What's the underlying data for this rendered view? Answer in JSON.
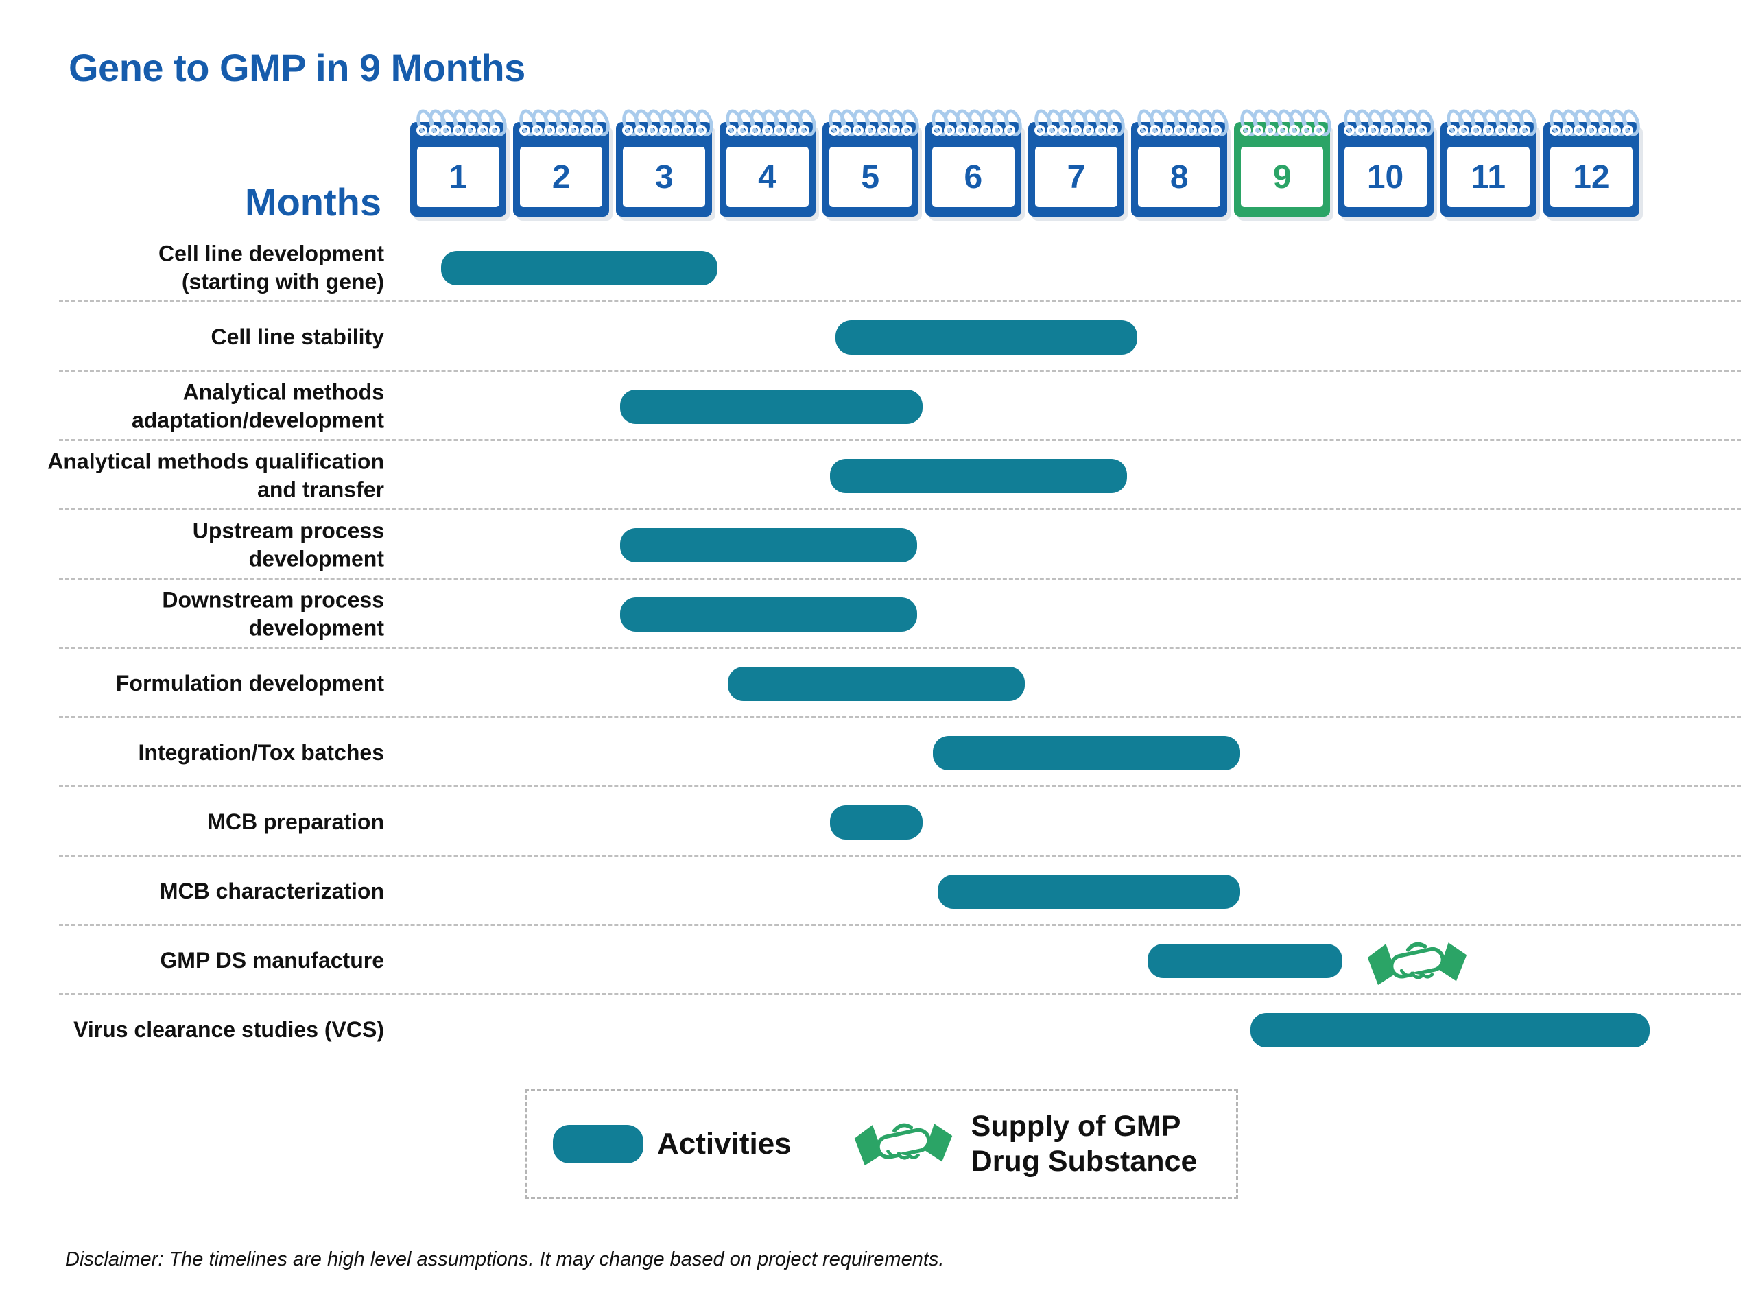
{
  "title": "Gene to GMP in 9 Months",
  "header": {
    "months_label": "Months"
  },
  "chart_data": {
    "type": "gantt",
    "title": "Gene to GMP in 9 Months",
    "x_axis": {
      "label": "Months",
      "min": 1,
      "max": 13
    },
    "months": [
      {
        "label": "1",
        "highlight": false
      },
      {
        "label": "2",
        "highlight": false
      },
      {
        "label": "3",
        "highlight": false
      },
      {
        "label": "4",
        "highlight": false
      },
      {
        "label": "5",
        "highlight": false
      },
      {
        "label": "6",
        "highlight": false
      },
      {
        "label": "7",
        "highlight": false
      },
      {
        "label": "8",
        "highlight": false
      },
      {
        "label": "9",
        "highlight": true
      },
      {
        "label": "10",
        "highlight": false
      },
      {
        "label": "11",
        "highlight": false
      },
      {
        "label": "12",
        "highlight": false
      }
    ],
    "rows": [
      {
        "label": "Cell line development\n(starting with gene)",
        "start": 1.3,
        "end": 4.0
      },
      {
        "label": "Cell line stability",
        "start": 5.15,
        "end": 8.1
      },
      {
        "label": "Analytical methods\nadaptation/development",
        "start": 3.05,
        "end": 6.0
      },
      {
        "label": "Analytical methods qualification\nand transfer",
        "start": 5.1,
        "end": 8.0
      },
      {
        "label": "Upstream process\ndevelopment",
        "start": 3.05,
        "end": 5.95
      },
      {
        "label": "Downstream process\ndevelopment",
        "start": 3.05,
        "end": 5.95
      },
      {
        "label": "Formulation development",
        "start": 4.1,
        "end": 7.0
      },
      {
        "label": "Integration/Tox batches",
        "start": 6.1,
        "end": 9.1
      },
      {
        "label": "MCB preparation",
        "start": 5.1,
        "end": 6.0
      },
      {
        "label": "MCB characterization",
        "start": 6.15,
        "end": 9.1
      },
      {
        "label": "GMP DS manufacture",
        "start": 8.2,
        "end": 10.1,
        "milestone": {
          "type": "handshake",
          "at": 10.32,
          "label": "Supply of GMP Drug Substance"
        }
      },
      {
        "label": "Virus clearance studies (VCS)",
        "start": 9.2,
        "end": 13.1
      }
    ],
    "legend": [
      {
        "swatch": "bar",
        "label": "Activities"
      },
      {
        "swatch": "handshake",
        "label": "Supply of GMP Drug Substance"
      }
    ],
    "colors": {
      "bar_teal": "#117E96",
      "calendar_blue": "#165CAC",
      "highlight_green": "#2BA466",
      "spiral_ring": "#A9CBEC",
      "separator_gray": "#BFBFBF"
    }
  },
  "legend": {
    "activities_label": "Activities",
    "supply_label": "Supply of GMP\nDrug Substance"
  },
  "disclaimer": "Disclaimer: The timelines are high level assumptions. It may change based on project requirements."
}
